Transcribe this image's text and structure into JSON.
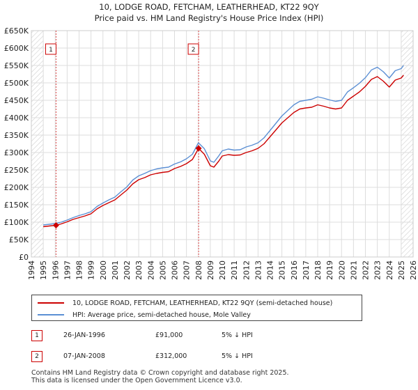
{
  "chart_data": {
    "type": "line",
    "title": "10, LODGE ROAD, FETCHAM, LEATHERHEAD, KT22 9QY",
    "subtitle": "Price paid vs. HM Land Registry's House Price Index (HPI)",
    "xlim": [
      1994.0,
      2026.0
    ],
    "ylim": [
      0,
      650000
    ],
    "x_ticks": [
      1994,
      1995,
      1996,
      1997,
      1998,
      1999,
      2000,
      2001,
      2002,
      2003,
      2004,
      2005,
      2006,
      2007,
      2008,
      2009,
      2010,
      2011,
      2012,
      2013,
      2014,
      2015,
      2016,
      2017,
      2018,
      2019,
      2020,
      2021,
      2022,
      2023,
      2024,
      2025,
      2026
    ],
    "x_tick_labels": [
      "1994",
      "1995",
      "1996",
      "1997",
      "1998",
      "1999",
      "2000",
      "2001",
      "2002",
      "2003",
      "2004",
      "2005",
      "2006",
      "2007",
      "2008",
      "2009",
      "2010",
      "2011",
      "2012",
      "2013",
      "2014",
      "2015",
      "2016",
      "2017",
      "2018",
      "2019",
      "2020",
      "2021",
      "2022",
      "2023",
      "2024",
      "2025",
      "2026"
    ],
    "y_ticks": [
      0,
      50000,
      100000,
      150000,
      200000,
      250000,
      300000,
      350000,
      400000,
      450000,
      500000,
      550000,
      600000,
      650000
    ],
    "y_tick_labels": [
      "£0",
      "£50K",
      "£100K",
      "£150K",
      "£200K",
      "£250K",
      "£300K",
      "£350K",
      "£400K",
      "£450K",
      "£500K",
      "£550K",
      "£600K",
      "£650K"
    ],
    "grid": true,
    "series": [
      {
        "name": "10, LODGE ROAD, FETCHAM, LEATHERHEAD, KT22 9QY (semi-detached house)",
        "color": "#cc0000",
        "x": [
          1995.0,
          1995.5,
          1996.07,
          1996.5,
          1997.0,
          1997.5,
          1998.0,
          1998.5,
          1999.0,
          1999.5,
          2000.0,
          2000.5,
          2001.0,
          2001.5,
          2002.0,
          2002.5,
          2003.0,
          2003.5,
          2004.0,
          2004.5,
          2005.0,
          2005.5,
          2006.0,
          2006.5,
          2007.0,
          2007.5,
          2008.02,
          2008.5,
          2009.0,
          2009.3,
          2009.7,
          2010.0,
          2010.5,
          2011.0,
          2011.5,
          2012.0,
          2012.5,
          2013.0,
          2013.5,
          2014.0,
          2014.5,
          2015.0,
          2015.5,
          2016.0,
          2016.5,
          2017.0,
          2017.5,
          2018.0,
          2018.5,
          2019.0,
          2019.5,
          2020.0,
          2020.5,
          2021.0,
          2021.5,
          2022.0,
          2022.5,
          2023.0,
          2023.5,
          2024.0,
          2024.5,
          2025.0,
          2025.2
        ],
        "values": [
          87000,
          89000,
          91000,
          95000,
          101000,
          108000,
          113000,
          118000,
          124000,
          138000,
          148000,
          156000,
          164000,
          178000,
          192000,
          210000,
          222000,
          228000,
          236000,
          240000,
          243000,
          245000,
          254000,
          260000,
          268000,
          280000,
          312000,
          295000,
          262000,
          258000,
          275000,
          290000,
          294000,
          292000,
          293000,
          300000,
          305000,
          312000,
          325000,
          345000,
          365000,
          385000,
          400000,
          415000,
          425000,
          428000,
          430000,
          437000,
          433000,
          428000,
          425000,
          428000,
          450000,
          462000,
          474000,
          490000,
          510000,
          518000,
          505000,
          488000,
          508000,
          514000,
          522000
        ]
      },
      {
        "name": "HPI: Average price, semi-detached house, Mole Valley",
        "color": "#5b8fd4",
        "x": [
          1995.0,
          1995.5,
          1996.0,
          1996.5,
          1997.0,
          1997.5,
          1998.0,
          1998.5,
          1999.0,
          1999.5,
          2000.0,
          2000.5,
          2001.0,
          2001.5,
          2002.0,
          2002.5,
          2003.0,
          2003.5,
          2004.0,
          2004.5,
          2005.0,
          2005.5,
          2006.0,
          2006.5,
          2007.0,
          2007.5,
          2008.0,
          2008.5,
          2009.0,
          2009.3,
          2009.7,
          2010.0,
          2010.5,
          2011.0,
          2011.5,
          2012.0,
          2012.5,
          2013.0,
          2013.5,
          2014.0,
          2014.5,
          2015.0,
          2015.5,
          2016.0,
          2016.5,
          2017.0,
          2017.5,
          2018.0,
          2018.5,
          2019.0,
          2019.5,
          2020.0,
          2020.5,
          2021.0,
          2021.5,
          2022.0,
          2022.5,
          2023.0,
          2023.5,
          2024.0,
          2024.5,
          2025.0,
          2025.2
        ],
        "values": [
          92000,
          94000,
          96000,
          100000,
          106000,
          113000,
          119000,
          124000,
          130000,
          145000,
          155000,
          164000,
          172000,
          187000,
          201000,
          221000,
          233000,
          240000,
          248000,
          253000,
          256000,
          258000,
          267000,
          273000,
          282000,
          295000,
          328000,
          311000,
          276000,
          272000,
          290000,
          305000,
          310000,
          307000,
          308000,
          316000,
          321000,
          328000,
          342000,
          363000,
          384000,
          405000,
          421000,
          437000,
          447000,
          450000,
          453000,
          460000,
          456000,
          451000,
          447000,
          450000,
          474000,
          486000,
          499000,
          515000,
          537000,
          545000,
          532000,
          514000,
          535000,
          541000,
          550000
        ]
      }
    ],
    "markers": [
      {
        "label": "1",
        "x": 1996.07,
        "y": 91000
      },
      {
        "label": "2",
        "x": 2008.02,
        "y": 312000
      }
    ],
    "vlines": [
      1996.07,
      2008.02
    ],
    "hatched_before": 1995.0,
    "hatched_after": 2025.0
  },
  "legend": [
    {
      "label": "10, LODGE ROAD, FETCHAM, LEATHERHEAD, KT22 9QY (semi-detached house)",
      "color": "#cc0000"
    },
    {
      "label": "HPI: Average price, semi-detached house, Mole Valley",
      "color": "#5b8fd4"
    }
  ],
  "transactions": [
    {
      "num": "1",
      "date": "26-JAN-1996",
      "price": "£91,000",
      "hpi": "5% ↓ HPI"
    },
    {
      "num": "2",
      "date": "07-JAN-2008",
      "price": "£312,000",
      "hpi": "5% ↓ HPI"
    }
  ],
  "footer": {
    "line1": "Contains HM Land Registry data © Crown copyright and database right 2025.",
    "line2": "This data is licensed under the Open Government Licence v3.0."
  }
}
